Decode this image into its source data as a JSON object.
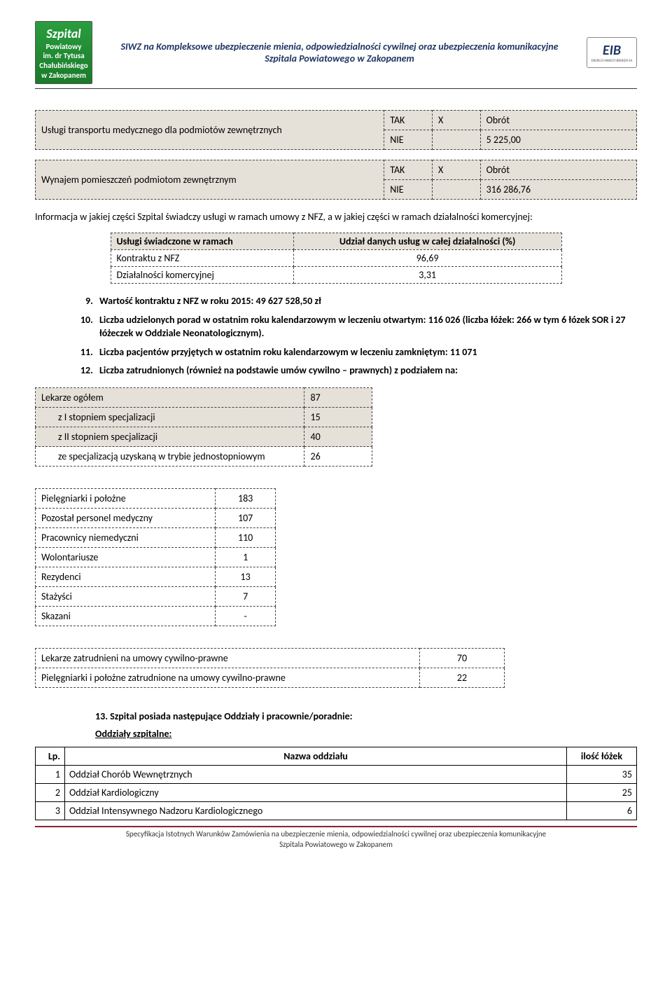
{
  "header": {
    "logo_left_lines": [
      "Szpital",
      "Powiatowy",
      "im. dr Tytusa",
      "Chałubińskiego",
      "w Zakopanem"
    ],
    "title": "SIWZ na Kompleksowe ubezpieczenie mienia, odpowiedzialności cywilnej oraz ubezpieczenia komunikacyjne Szpitala Powiatowego w Zakopanem",
    "logo_right": "EIB",
    "logo_right_sub": "ENERGO-INWEST-BROKER SA"
  },
  "service_tables": [
    {
      "label": "Usługi transportu medycznego dla podmiotów zewnętrznych",
      "rows": [
        {
          "k": "TAK",
          "mark": "X",
          "v": "Obrót"
        },
        {
          "k": "NIE",
          "mark": "",
          "v": "5 225,00"
        }
      ]
    },
    {
      "label": "Wynajem pomieszczeń podmiotom zewnętrznym",
      "rows": [
        {
          "k": "TAK",
          "mark": "X",
          "v": "Obrót"
        },
        {
          "k": "NIE",
          "mark": "",
          "v": "316 286,76"
        }
      ]
    }
  ],
  "info_para": "Informacja w jakiej części Szpital świadczy usługi w ramach umowy z NFZ, a w jakiej części w ramach działalności komercyjnej:",
  "share_table": {
    "headers": [
      "Usługi świadczone w ramach",
      "Udział danych usług w całej działalności (%)"
    ],
    "rows": [
      {
        "label": "Kontraktu z NFZ",
        "val": "96,69"
      },
      {
        "label": "Działalności komercyjnej",
        "val": "3,31"
      }
    ]
  },
  "numbered": [
    {
      "n": "9",
      "text": "Wartość kontraktu z NFZ w roku 2015: 49 627 528,50 zł"
    },
    {
      "n": "10",
      "text": "Liczba udzielonych porad w ostatnim roku kalendarzowym w leczeniu otwartym: 116 026 (liczba łóżek: 266 w tym 6 łózek SOR i 27 łóżeczek w Oddziale Neonatologicznym)."
    },
    {
      "n": "11",
      "text": "Liczba pacjentów przyjętych w ostatnim roku kalendarzowym w leczeniu zamkniętym: 11 071"
    },
    {
      "n": "12",
      "text": "Liczba zatrudnionych (również na podstawie umów cywilno – prawnych) z podziałem na:"
    }
  ],
  "staff_table1": [
    {
      "label": "Lekarze ogółem",
      "val": "87",
      "indent": false,
      "bg": true
    },
    {
      "label": "z I stopniem specjalizacji",
      "val": "15",
      "indent": true,
      "bg": true
    },
    {
      "label": "z II stopniem specjalizacji",
      "val": "40",
      "indent": true,
      "bg": true
    },
    {
      "label": "ze specjalizacją uzyskaną w trybie jednostopniowym",
      "val": "26",
      "indent": true,
      "bg": false
    }
  ],
  "staff_table2": [
    {
      "label": "Pielęgniarki i położne",
      "val": "183"
    },
    {
      "label": "Pozostał personel medyczny",
      "val": "107"
    },
    {
      "label": "Pracownicy niemedyczni",
      "val": "110"
    },
    {
      "label": "Wolontariusze",
      "val": "1"
    },
    {
      "label": "Rezydenci",
      "val": "13"
    },
    {
      "label": "Stażyści",
      "val": "7"
    },
    {
      "label": "Skazani",
      "val": "-"
    }
  ],
  "staff_table3": [
    {
      "label": "Lekarze zatrudnieni na umowy cywilno-prawne",
      "val": "70"
    },
    {
      "label": "Pielęgniarki i położne zatrudnione na umowy cywilno-prawne",
      "val": "22"
    }
  ],
  "section13": {
    "heading": "13.  Szpital posiada następujące Oddziały i pracownie/poradnie:",
    "sub": "Oddziały szpitalne:"
  },
  "dept_table": {
    "headers": [
      "Lp.",
      "Nazwa oddziału",
      "ilość łóżek"
    ],
    "rows": [
      {
        "lp": "1",
        "name": "Oddział Chorób Wewnętrznych",
        "beds": "35"
      },
      {
        "lp": "2",
        "name": "Oddział Kardiologiczny",
        "beds": "25"
      },
      {
        "lp": "3",
        "name": "Oddział Intensywnego Nadzoru Kardiologicznego",
        "beds": "6"
      }
    ]
  },
  "footer": {
    "line1": "Specyfikacja Istotnych Warunków Zamówienia na ubezpieczenie mienia, odpowiedzialności cywilnej oraz ubezpieczenia komunikacyjne",
    "line2": "Szpitala Powiatowego w Zakopanem"
  },
  "colors": {
    "header_text": "#1f3864",
    "bg_cell": "#e5e0d8",
    "footer_border": "#823333"
  }
}
